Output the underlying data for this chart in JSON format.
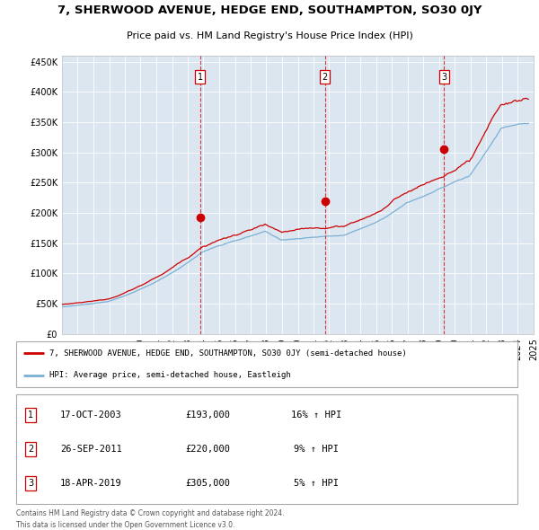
{
  "title": "7, SHERWOOD AVENUE, HEDGE END, SOUTHAMPTON, SO30 0JY",
  "subtitle": "Price paid vs. HM Land Registry's House Price Index (HPI)",
  "red_label": "7, SHERWOOD AVENUE, HEDGE END, SOUTHAMPTON, SO30 0JY (semi-detached house)",
  "blue_label": "HPI: Average price, semi-detached house, Eastleigh",
  "transactions": [
    {
      "num": 1,
      "date": "17-OCT-2003",
      "price": 193000,
      "pct": "16%",
      "dir": "↑"
    },
    {
      "num": 2,
      "date": "26-SEP-2011",
      "price": 220000,
      "pct": "9%",
      "dir": "↑"
    },
    {
      "num": 3,
      "date": "18-APR-2019",
      "price": 305000,
      "pct": "5%",
      "dir": "↑"
    }
  ],
  "transaction_prices": [
    193000,
    220000,
    305000
  ],
  "ylim": [
    0,
    460000
  ],
  "yticks": [
    0,
    50000,
    100000,
    150000,
    200000,
    250000,
    300000,
    350000,
    400000,
    450000
  ],
  "ytick_labels": [
    "£0",
    "£50K",
    "£100K",
    "£150K",
    "£200K",
    "£250K",
    "£300K",
    "£350K",
    "£400K",
    "£450K"
  ],
  "bg_color": "#dce6f1",
  "red_color": "#cc0000",
  "blue_color": "#7ab0d4",
  "footnote1": "Contains HM Land Registry data © Crown copyright and database right 2024.",
  "footnote2": "This data is licensed under the Open Government Licence v3.0."
}
